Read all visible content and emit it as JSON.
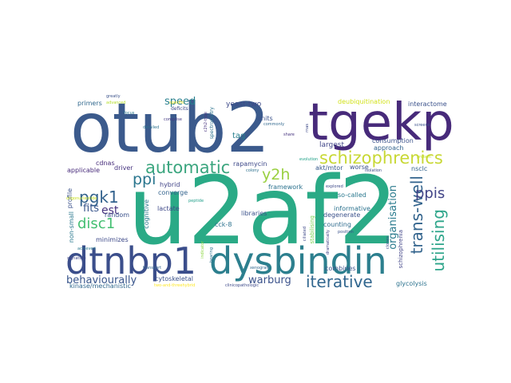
{
  "words": [
    {
      "text": "otub2",
      "color": "#3b5a8c"
    },
    {
      "text": "u2af2",
      "color": "#2aaa86"
    },
    {
      "text": "tgekp",
      "color": "#472a7a"
    },
    {
      "text": "dtnbp1",
      "color": "#3b4e8b"
    },
    {
      "text": "dysbindin",
      "color": "#2c7f8e"
    },
    {
      "text": "schizophrenics",
      "color": "#c8d835"
    },
    {
      "text": "automatic",
      "color": "#3aa57e"
    },
    {
      "text": "iterative",
      "color": "#31668e"
    },
    {
      "text": "trans-well",
      "color": "#33648d"
    },
    {
      "text": "utilising",
      "color": "#2da58a"
    },
    {
      "text": "y2h",
      "color": "#9ad041"
    },
    {
      "text": "ppis",
      "color": "#414487"
    },
    {
      "text": "pgk1",
      "color": "#33628d"
    },
    {
      "text": "ppi",
      "color": "#2a768e"
    },
    {
      "text": "disc1",
      "color": "#43bf71"
    },
    {
      "text": "speed",
      "color": "#277f8e"
    },
    {
      "text": "est",
      "color": "#46327e"
    },
    {
      "text": "fits",
      "color": "#39568c"
    },
    {
      "text": "behaviourally",
      "color": "#39568c"
    },
    {
      "text": "warburg",
      "color": "#3b528b"
    },
    {
      "text": "organisation",
      "color": "#2b7b8e"
    },
    {
      "text": "yeast-two",
      "color": "#3e4a89"
    },
    {
      "text": "deubiquitination",
      "color": "#d2e21b"
    },
    {
      "text": "interactome",
      "color": "#3b528b"
    },
    {
      "text": "primers",
      "color": "#31688e"
    },
    {
      "text": "advanced",
      "color": "#b5de2b"
    },
    {
      "text": "greatly",
      "color": "#3b528b"
    },
    {
      "text": "deficits",
      "color": "#3e4989"
    },
    {
      "text": "specific",
      "color": "#fde725"
    },
    {
      "text": "focus",
      "color": "#2a788e"
    },
    {
      "text": "comprise",
      "color": "#443983"
    },
    {
      "text": "detailed",
      "color": "#2c728e"
    },
    {
      "text": "c2h2-type",
      "color": "#46327e"
    },
    {
      "text": "spectrometry",
      "color": "#2c728e"
    },
    {
      "text": "units",
      "color": "#3b528b"
    },
    {
      "text": "commonly",
      "color": "#31688e"
    },
    {
      "text": "tag",
      "color": "#277f8e"
    },
    {
      "text": "share",
      "color": "#46337f"
    },
    {
      "text": "rnas",
      "color": "#3e4a89"
    },
    {
      "text": "largest",
      "color": "#404688"
    },
    {
      "text": "consumption",
      "color": "#3b528b"
    },
    {
      "text": "approach",
      "color": "#33638d"
    },
    {
      "text": "screens",
      "color": "#3b528b"
    },
    {
      "text": "evolution",
      "color": "#1fa187"
    },
    {
      "text": "protein",
      "color": "#c2df23"
    },
    {
      "text": "cdnas",
      "color": "#472d7b"
    },
    {
      "text": "applicable",
      "color": "#472a7a"
    },
    {
      "text": "driver",
      "color": "#46337f"
    },
    {
      "text": "rapamycin",
      "color": "#3e4989"
    },
    {
      "text": "colony",
      "color": "#2d708e"
    },
    {
      "text": "akt/mtor",
      "color": "#38598c"
    },
    {
      "text": "worse",
      "color": "#3b528b"
    },
    {
      "text": "isolation",
      "color": "#3e4a89"
    },
    {
      "text": "nsclc",
      "color": "#33638d"
    },
    {
      "text": "hybrid",
      "color": "#414487"
    },
    {
      "text": "converge",
      "color": "#33638d"
    },
    {
      "text": "peptide",
      "color": "#1f9e89"
    },
    {
      "text": "lactate",
      "color": "#3e4989"
    },
    {
      "text": "framework",
      "color": "#2c728e"
    },
    {
      "text": "so-called",
      "color": "#2a788e"
    },
    {
      "text": "libraries",
      "color": "#3b528b"
    },
    {
      "text": "explored",
      "color": "#3e4a89"
    },
    {
      "text": "informative",
      "color": "#2c728e"
    },
    {
      "text": "degenerate",
      "color": "#3b528b"
    },
    {
      "text": "counting",
      "color": "#2f6c8e"
    },
    {
      "text": "stabilising",
      "color": "#7ad151"
    },
    {
      "text": "dramatically",
      "color": "#414487"
    },
    {
      "text": "position",
      "color": "#3b528b"
    },
    {
      "text": "clones",
      "color": "#3e4989"
    },
    {
      "text": "schizophrenia",
      "color": "#414487"
    },
    {
      "text": "profile",
      "color": "#3b528b"
    },
    {
      "text": "oligonucleotide",
      "color": "#c8e020"
    },
    {
      "text": "random",
      "color": "#3b528b"
    },
    {
      "text": "minimizes",
      "color": "#3e4a89"
    },
    {
      "text": "cognitive",
      "color": "#2a788e"
    },
    {
      "text": "cck-8",
      "color": "#2c728e"
    },
    {
      "text": "non-small",
      "color": "#2a788e"
    },
    {
      "text": "signature",
      "color": "#404688"
    },
    {
      "text": "xenograft",
      "color": "#31688e"
    },
    {
      "text": "combines",
      "color": "#3b528b"
    },
    {
      "text": "transport",
      "color": "#33638d"
    },
    {
      "text": "indicator",
      "color": "#8fd744"
    },
    {
      "text": "cytoskeletal",
      "color": "#3b528b"
    },
    {
      "text": "kinase/mechanistic",
      "color": "#31688e"
    },
    {
      "text": "two-and-threehybrid",
      "color": "#fde725"
    },
    {
      "text": "clinicopathologic",
      "color": "#3e4a89"
    },
    {
      "text": "glycolysis",
      "color": "#2c728e"
    },
    {
      "text": "achieved",
      "color": "#2a788e"
    },
    {
      "text": "ciliated",
      "color": "#3e4a89"
    },
    {
      "text": "bearing",
      "color": "#2c728e"
    }
  ]
}
